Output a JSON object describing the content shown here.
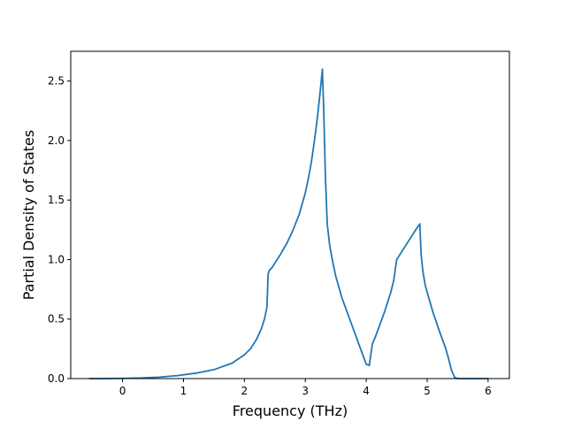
{
  "chart_data": {
    "type": "line",
    "title": "",
    "xlabel": "Frequency (THz)",
    "ylabel": "Partial Density of States",
    "xlim": [
      -0.85,
      6.35
    ],
    "ylim": [
      0.0,
      2.75
    ],
    "xticks": [
      0,
      1,
      2,
      3,
      4,
      5,
      6
    ],
    "xtick_labels": [
      "0",
      "1",
      "2",
      "3",
      "4",
      "5",
      "6"
    ],
    "yticks": [
      0.0,
      0.5,
      1.0,
      1.5,
      2.0,
      2.5
    ],
    "ytick_labels": [
      "0.0",
      "0.5",
      "1.0",
      "1.5",
      "2.0",
      "2.5"
    ],
    "grid": false,
    "series": [
      {
        "color": "#1f77b4",
        "x": [
          -0.55,
          -0.3,
          0.0,
          0.3,
          0.6,
          0.9,
          1.2,
          1.5,
          1.8,
          2.0,
          2.1,
          2.2,
          2.28,
          2.33,
          2.37,
          2.39,
          2.41,
          2.45,
          2.5,
          2.6,
          2.7,
          2.8,
          2.9,
          3.0,
          3.05,
          3.1,
          3.15,
          3.2,
          3.25,
          3.28,
          3.3,
          3.33,
          3.36,
          3.4,
          3.45,
          3.5,
          3.6,
          3.7,
          3.8,
          3.9,
          4.0,
          4.05,
          4.1,
          4.15,
          4.2,
          4.3,
          4.4,
          4.45,
          4.5,
          4.55,
          4.6,
          4.7,
          4.8,
          4.88,
          4.9,
          4.93,
          4.97,
          5.02,
          5.1,
          5.2,
          5.3,
          5.35,
          5.4,
          5.45,
          5.5,
          6.0
        ],
        "y": [
          0.0,
          0.0,
          0.002,
          0.005,
          0.012,
          0.025,
          0.045,
          0.075,
          0.13,
          0.2,
          0.25,
          0.33,
          0.42,
          0.5,
          0.6,
          0.88,
          0.91,
          0.93,
          0.97,
          1.05,
          1.14,
          1.25,
          1.38,
          1.56,
          1.68,
          1.82,
          2.0,
          2.2,
          2.44,
          2.6,
          2.3,
          1.7,
          1.3,
          1.12,
          0.98,
          0.86,
          0.68,
          0.54,
          0.4,
          0.26,
          0.12,
          0.11,
          0.29,
          0.35,
          0.42,
          0.56,
          0.72,
          0.82,
          1.0,
          1.04,
          1.08,
          1.16,
          1.24,
          1.3,
          1.05,
          0.9,
          0.78,
          0.69,
          0.55,
          0.4,
          0.26,
          0.17,
          0.07,
          0.01,
          0.0,
          0.0
        ]
      }
    ]
  }
}
